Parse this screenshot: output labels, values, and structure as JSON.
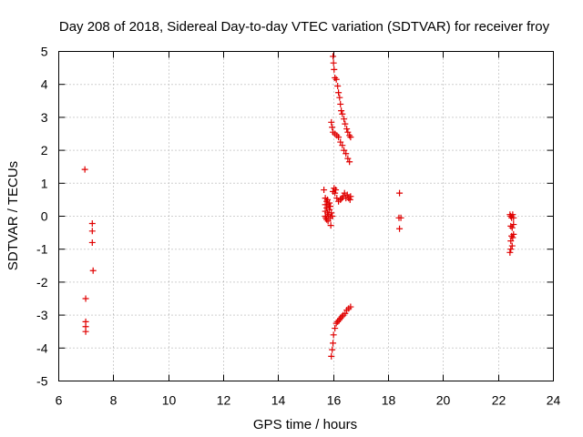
{
  "chart_data": {
    "type": "scatter",
    "title": "Day 208 of 2018, Sidereal Day-to-day VTEC variation (SDTVAR) for receiver froy",
    "xlabel": "GPS time / hours",
    "ylabel": "SDTVAR / TECUs",
    "xlim": [
      6,
      24
    ],
    "ylim": [
      -5,
      5
    ],
    "xticks": [
      6,
      8,
      10,
      12,
      14,
      16,
      18,
      20,
      22,
      24
    ],
    "yticks": [
      -5,
      -4,
      -3,
      -2,
      -1,
      0,
      1,
      2,
      3,
      4,
      5
    ],
    "grid": true,
    "marker": "+",
    "series": [
      {
        "name": "SDTVAR",
        "color": "#e00000",
        "points": [
          [
            6.95,
            1.42
          ],
          [
            7.22,
            -0.22
          ],
          [
            7.22,
            -0.45
          ],
          [
            7.22,
            -0.8
          ],
          [
            7.25,
            -1.65
          ],
          [
            6.98,
            -2.5
          ],
          [
            6.98,
            -3.2
          ],
          [
            6.98,
            -3.35
          ],
          [
            6.98,
            -3.5
          ],
          [
            15.65,
            0.8
          ],
          [
            15.7,
            0.55
          ],
          [
            15.7,
            0.35
          ],
          [
            15.7,
            0.15
          ],
          [
            15.7,
            0.0
          ],
          [
            15.72,
            -0.05
          ],
          [
            15.75,
            0.45
          ],
          [
            15.75,
            0.25
          ],
          [
            15.75,
            -0.1
          ],
          [
            15.78,
            0.5
          ],
          [
            15.78,
            0.1
          ],
          [
            15.8,
            0.35
          ],
          [
            15.8,
            -0.15
          ],
          [
            15.82,
            0.05
          ],
          [
            15.85,
            0.4
          ],
          [
            15.85,
            0.2
          ],
          [
            15.88,
            0.3
          ],
          [
            15.88,
            -0.05
          ],
          [
            15.9,
            -0.28
          ],
          [
            15.92,
            0.1
          ],
          [
            15.95,
            0.0
          ],
          [
            15.98,
            0.75
          ],
          [
            16.02,
            0.85
          ],
          [
            16.05,
            0.7
          ],
          [
            16.08,
            0.8
          ],
          [
            16.12,
            0.55
          ],
          [
            16.18,
            0.45
          ],
          [
            16.25,
            0.5
          ],
          [
            16.3,
            0.55
          ],
          [
            16.35,
            0.6
          ],
          [
            16.4,
            0.7
          ],
          [
            16.45,
            0.55
          ],
          [
            16.5,
            0.65
          ],
          [
            16.55,
            0.55
          ],
          [
            16.6,
            0.5
          ],
          [
            16.62,
            0.6
          ],
          [
            15.98,
            4.85
          ],
          [
            16.0,
            4.65
          ],
          [
            16.02,
            4.45
          ],
          [
            16.05,
            4.2
          ],
          [
            16.1,
            4.15
          ],
          [
            16.15,
            3.95
          ],
          [
            16.18,
            3.75
          ],
          [
            16.22,
            3.6
          ],
          [
            16.25,
            3.4
          ],
          [
            16.28,
            3.2
          ],
          [
            16.32,
            3.1
          ],
          [
            16.38,
            2.95
          ],
          [
            16.42,
            2.8
          ],
          [
            16.48,
            2.65
          ],
          [
            16.52,
            2.55
          ],
          [
            16.58,
            2.45
          ],
          [
            16.62,
            2.4
          ],
          [
            15.92,
            2.85
          ],
          [
            15.95,
            2.7
          ],
          [
            15.98,
            2.55
          ],
          [
            16.05,
            2.5
          ],
          [
            16.12,
            2.45
          ],
          [
            16.18,
            2.4
          ],
          [
            16.25,
            2.25
          ],
          [
            16.32,
            2.15
          ],
          [
            16.38,
            2.0
          ],
          [
            16.45,
            1.9
          ],
          [
            16.52,
            1.75
          ],
          [
            16.58,
            1.65
          ],
          [
            15.92,
            -4.25
          ],
          [
            15.95,
            -4.05
          ],
          [
            15.98,
            -3.85
          ],
          [
            16.0,
            -3.6
          ],
          [
            16.05,
            -3.4
          ],
          [
            16.1,
            -3.25
          ],
          [
            16.15,
            -3.2
          ],
          [
            16.2,
            -3.15
          ],
          [
            16.25,
            -3.1
          ],
          [
            16.3,
            -3.05
          ],
          [
            16.35,
            -3.0
          ],
          [
            16.42,
            -2.95
          ],
          [
            16.48,
            -2.85
          ],
          [
            16.55,
            -2.8
          ],
          [
            16.62,
            -2.75
          ],
          [
            18.4,
            0.7
          ],
          [
            18.38,
            -0.05
          ],
          [
            18.45,
            -0.05
          ],
          [
            18.4,
            -0.38
          ],
          [
            22.42,
            0.05
          ],
          [
            22.45,
            0.0
          ],
          [
            22.48,
            -0.05
          ],
          [
            22.52,
            0.05
          ],
          [
            22.55,
            -0.05
          ],
          [
            22.45,
            -0.3
          ],
          [
            22.5,
            -0.35
          ],
          [
            22.55,
            -0.25
          ],
          [
            22.48,
            -0.6
          ],
          [
            22.52,
            -0.65
          ],
          [
            22.55,
            -0.55
          ],
          [
            22.45,
            -0.75
          ],
          [
            22.5,
            -0.9
          ],
          [
            22.45,
            -1.0
          ],
          [
            22.42,
            -1.1
          ]
        ]
      }
    ]
  }
}
